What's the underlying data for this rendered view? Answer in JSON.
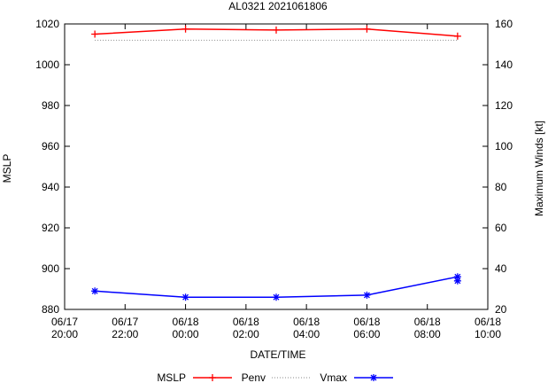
{
  "chart_data": {
    "type": "line",
    "title": "AL0321 2021061806",
    "xlabel": "DATE/TIME",
    "ylabel_left": "MSLP",
    "ylabel_right": "Maximum Winds [kt]",
    "x_ticks": [
      {
        "line1": "06/17",
        "line2": "20:00",
        "hour": 0
      },
      {
        "line1": "06/17",
        "line2": "22:00",
        "hour": 2
      },
      {
        "line1": "06/18",
        "line2": "00:00",
        "hour": 4
      },
      {
        "line1": "06/18",
        "line2": "02:00",
        "hour": 6
      },
      {
        "line1": "06/18",
        "line2": "04:00",
        "hour": 8
      },
      {
        "line1": "06/18",
        "line2": "06:00",
        "hour": 10
      },
      {
        "line1": "06/18",
        "line2": "08:00",
        "hour": 12
      },
      {
        "line1": "06/18",
        "line2": "10:00",
        "hour": 14
      }
    ],
    "xlim": [
      0,
      14
    ],
    "y_left": {
      "lim": [
        880,
        1020
      ],
      "ticks": [
        880,
        900,
        920,
        940,
        960,
        980,
        1000,
        1020
      ]
    },
    "y_right": {
      "lim": [
        20,
        160
      ],
      "ticks": [
        20,
        40,
        60,
        80,
        100,
        120,
        140,
        160
      ]
    },
    "series": [
      {
        "name": "MSLP",
        "axis": "left",
        "color": "#ff0000",
        "marker": "plus",
        "dash": false,
        "points": [
          [
            1,
            1015
          ],
          [
            4,
            1017.5
          ],
          [
            7,
            1017
          ],
          [
            10,
            1017.5
          ],
          [
            13,
            1014
          ]
        ]
      },
      {
        "name": "Penv",
        "axis": "left",
        "color": "#888888",
        "marker": "none",
        "dash": true,
        "points": [
          [
            1,
            1012
          ],
          [
            13,
            1012
          ]
        ]
      },
      {
        "name": "Vmax",
        "axis": "right",
        "color": "#0000ff",
        "marker": "star",
        "dash": false,
        "points": [
          [
            1,
            29
          ],
          [
            4,
            26
          ],
          [
            7,
            26
          ],
          [
            10,
            27
          ],
          [
            13,
            36
          ],
          [
            13,
            34
          ]
        ]
      }
    ],
    "legend_placement": "bottom"
  }
}
